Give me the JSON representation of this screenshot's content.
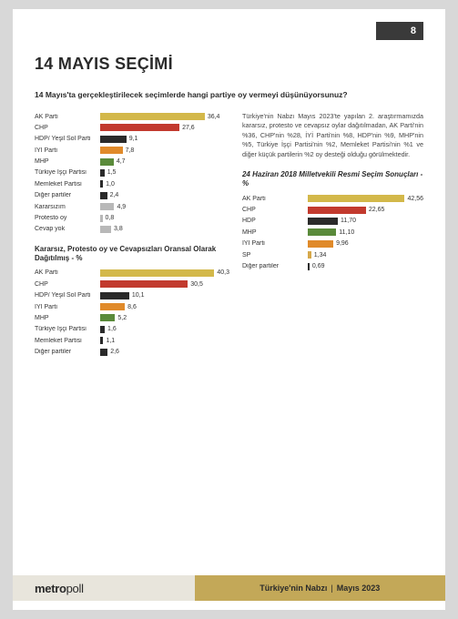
{
  "pageNumber": "8",
  "title": "14 MAYIS SEÇİMİ",
  "question": "14 Mayıs'ta gerçekleştirilecek seçimlerde hangi partiye oy vermeyi düşünüyorsunuz?",
  "paragraph": "Türkiye'nin Nabzı Mayıs 2023'te yapılan 2. araştırmamızda kararsız, protesto ve cevapsız oylar dağıtılmadan, AK Parti'nin %36, CHP'nin %28, İYİ Parti'nin %8, HDP'nin %9, MHP'nin %5, Türkiye İşçi Partisi'nin %2, Memleket Partisi'nin %1 ve diğer küçük partilerin %2 oy desteği olduğu görülmektedir.",
  "chart1": {
    "max": 45,
    "rows": [
      {
        "label": "AK Parti",
        "val": 36.4,
        "valText": "36,4",
        "color": "#d3b84a"
      },
      {
        "label": "CHP",
        "val": 27.6,
        "valText": "27,6",
        "color": "#c23a2e"
      },
      {
        "label": "HDP/ Yeşil Sol Parti",
        "val": 9.1,
        "valText": "9,1",
        "color": "#2a2a2a"
      },
      {
        "label": "İYİ Parti",
        "val": 7.8,
        "valText": "7,8",
        "color": "#e08a2a"
      },
      {
        "label": "MHP",
        "val": 4.7,
        "valText": "4,7",
        "color": "#5a8a3a"
      },
      {
        "label": "Türkiye İşçi Partisi",
        "val": 1.5,
        "valText": "1,5",
        "color": "#2a2a2a"
      },
      {
        "label": "Memleket Partisi",
        "val": 1.0,
        "valText": "1,0",
        "color": "#2a2a2a"
      },
      {
        "label": "Diğer partiler",
        "val": 2.4,
        "valText": "2,4",
        "color": "#2a2a2a"
      },
      {
        "label": "Kararsızım",
        "val": 4.9,
        "valText": "4,9",
        "color": "#b8b8b8"
      },
      {
        "label": "Protesto oy",
        "val": 0.8,
        "valText": "0,8",
        "color": "#b8b8b8"
      },
      {
        "label": "Cevap yok",
        "val": 3.8,
        "valText": "3,8",
        "color": "#b8b8b8"
      }
    ]
  },
  "chart2": {
    "title": "Kararsız, Protesto oy ve Cevapsızları Oransal Olarak Dağıtılmış - %",
    "max": 45,
    "rows": [
      {
        "label": "AK Parti",
        "val": 40.3,
        "valText": "40,3",
        "color": "#d3b84a"
      },
      {
        "label": "CHP",
        "val": 30.5,
        "valText": "30,5",
        "color": "#c23a2e"
      },
      {
        "label": "HDP/ Yeşil Sol Parti",
        "val": 10.1,
        "valText": "10,1",
        "color": "#2a2a2a"
      },
      {
        "label": "İYİ Parti",
        "val": 8.6,
        "valText": "8,6",
        "color": "#e08a2a"
      },
      {
        "label": "MHP",
        "val": 5.2,
        "valText": "5,2",
        "color": "#5a8a3a"
      },
      {
        "label": "Türkiye İşçi Partisi",
        "val": 1.6,
        "valText": "1,6",
        "color": "#2a2a2a"
      },
      {
        "label": "Memleket Partisi",
        "val": 1.1,
        "valText": "1,1",
        "color": "#2a2a2a"
      },
      {
        "label": "Diğer partiler",
        "val": 2.6,
        "valText": "2,6",
        "color": "#2a2a2a"
      }
    ]
  },
  "chart3": {
    "title": "24 Haziran 2018 Milletvekili Resmi Seçim Sonuçları - %",
    "max": 45,
    "rows": [
      {
        "label": "AK Parti",
        "val": 42.56,
        "valText": "42,56",
        "color": "#d3b84a"
      },
      {
        "label": "CHP",
        "val": 22.65,
        "valText": "22,65",
        "color": "#c23a2e"
      },
      {
        "label": "HDP",
        "val": 11.7,
        "valText": "11,70",
        "color": "#2a2a2a"
      },
      {
        "label": "MHP",
        "val": 11.1,
        "valText": "11,10",
        "color": "#5a8a3a"
      },
      {
        "label": "İYİ Parti",
        "val": 9.96,
        "valText": "9,96",
        "color": "#e08a2a"
      },
      {
        "label": "SP",
        "val": 1.34,
        "valText": "1,34",
        "color": "#d6a84a"
      },
      {
        "label": "Diğer partiler",
        "val": 0.69,
        "valText": "0,69",
        "color": "#2a2a2a"
      }
    ]
  },
  "footer": {
    "brandBold": "metro",
    "brandLight": "poll",
    "taglineLeft": "Türkiye'nin Nabzı",
    "taglineRight": "Mayıs 2023"
  }
}
